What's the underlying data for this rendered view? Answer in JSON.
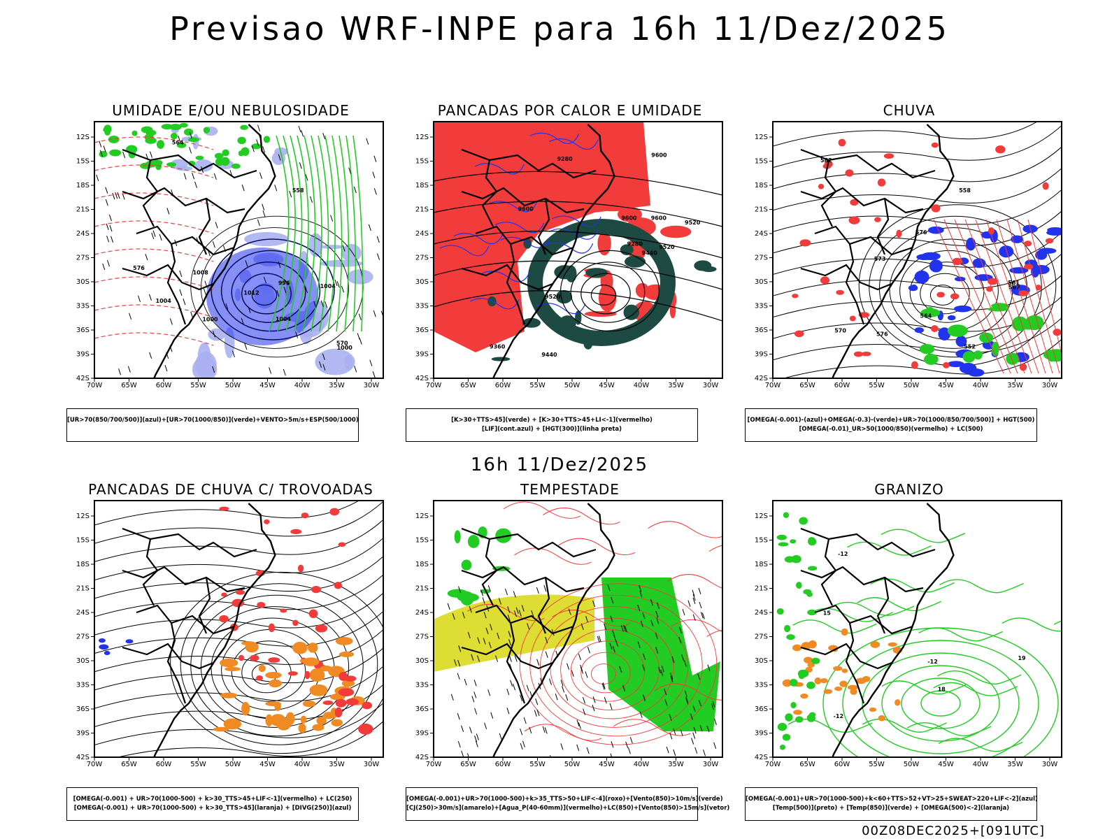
{
  "header": {
    "title": "Previsao WRF-INPE  para 16h 11/Dez/2025"
  },
  "mid_title": "16h 11/Dez/2025",
  "footer": "00Z08DEC2025+[091UTC]",
  "axes": {
    "lat_labels": [
      "12S",
      "15S",
      "18S",
      "21S",
      "24S",
      "27S",
      "30S",
      "33S",
      "36S",
      "39S",
      "42S"
    ],
    "lon_labels": [
      "70W",
      "65W",
      "60W",
      "55W",
      "50W",
      "45W",
      "40W",
      "35W",
      "30W"
    ]
  },
  "panels": [
    {
      "title": "UMIDADE E/OU NEBULOSIDADE",
      "legend": [
        "[UR>70(850/700/500)](azul)+[UR>70(1000/850)](verde)+VENTO>5m/s+ESP(500/1000)"
      ],
      "contour_labels": [
        "1004",
        "1004",
        "1008",
        "1012",
        "1004",
        "1000",
        "996",
        "1000",
        "576",
        "570",
        "564",
        "558"
      ]
    },
    {
      "title": "PANCADAS POR CALOR E UMIDADE",
      "legend": [
        "[K>30+TTS>45](verde) + [K>30+TTS>45+LI<-1](vermelho)",
        "[LIF](cont.azul) + [HGT(300)](linha preta)"
      ],
      "contour_labels": [
        "9600",
        "9600",
        "9600",
        "9520",
        "9520",
        "9520",
        "9440",
        "9440",
        "9360",
        "9280",
        "9280",
        "9600"
      ]
    },
    {
      "title": "CHUVA",
      "legend": [
        "[OMEGA(-0.001)-(azul)+OMEGA(-0.3)-(verde)+UR>70(1000/850/700/500)] + HGT(500)",
        "[OMEGA(-0.01)_UR>50(1000/850)(vermelho) + LC(500)"
      ],
      "contour_labels": [
        "576",
        "576",
        "573",
        "570",
        "567",
        "564",
        "561",
        "558",
        "552",
        "582"
      ]
    },
    {
      "title": "PANCADAS DE CHUVA C/ TROVOADAS",
      "legend": [
        "[OMEGA(-0.001) + UR>70(1000-500) + k>30_TTS>45+LIF<-1](vermelho) + LC(250)",
        "[OMEGA(-0.001) + UR>70(1000-500) + k>30_TTS>45](laranja) + [DIVG(250)](azul)"
      ]
    },
    {
      "title": "TEMPESTADE",
      "legend": [
        "[OMEGA(-0.001)+UR>70(1000-500)+k>35_TTS>50+LIF<-4](roxo)+[Vento(850)>10m/s](verde)",
        "[CJ(250)>30m/s](amarelo)+[Agua_P(40-60mm)](vermelho)+LC(850)+[Vento(850)>15m/s](vetor)"
      ]
    },
    {
      "title": "GRANIZO",
      "legend": [
        "[OMEGA(-0.001)+UR>70(1000-500)+k<60+TTS>52+VT>25+SWEAT>220+LIF<-2](azul)",
        "[Temp(500)](preto) + [Temp(850)](verde) + [OMEGA(500)<-2](laranja)"
      ],
      "contour_labels": [
        "-12",
        "-12",
        "-12",
        "15",
        "18",
        "19"
      ]
    }
  ],
  "colors": {
    "red": "#f23c3c",
    "green": "#22cc22",
    "blue": "#2233ee",
    "lavender": "#aab0f0",
    "teal": "#1e4a44",
    "yellow": "#dddd33",
    "orange": "#f08a22",
    "black": "#000000"
  }
}
